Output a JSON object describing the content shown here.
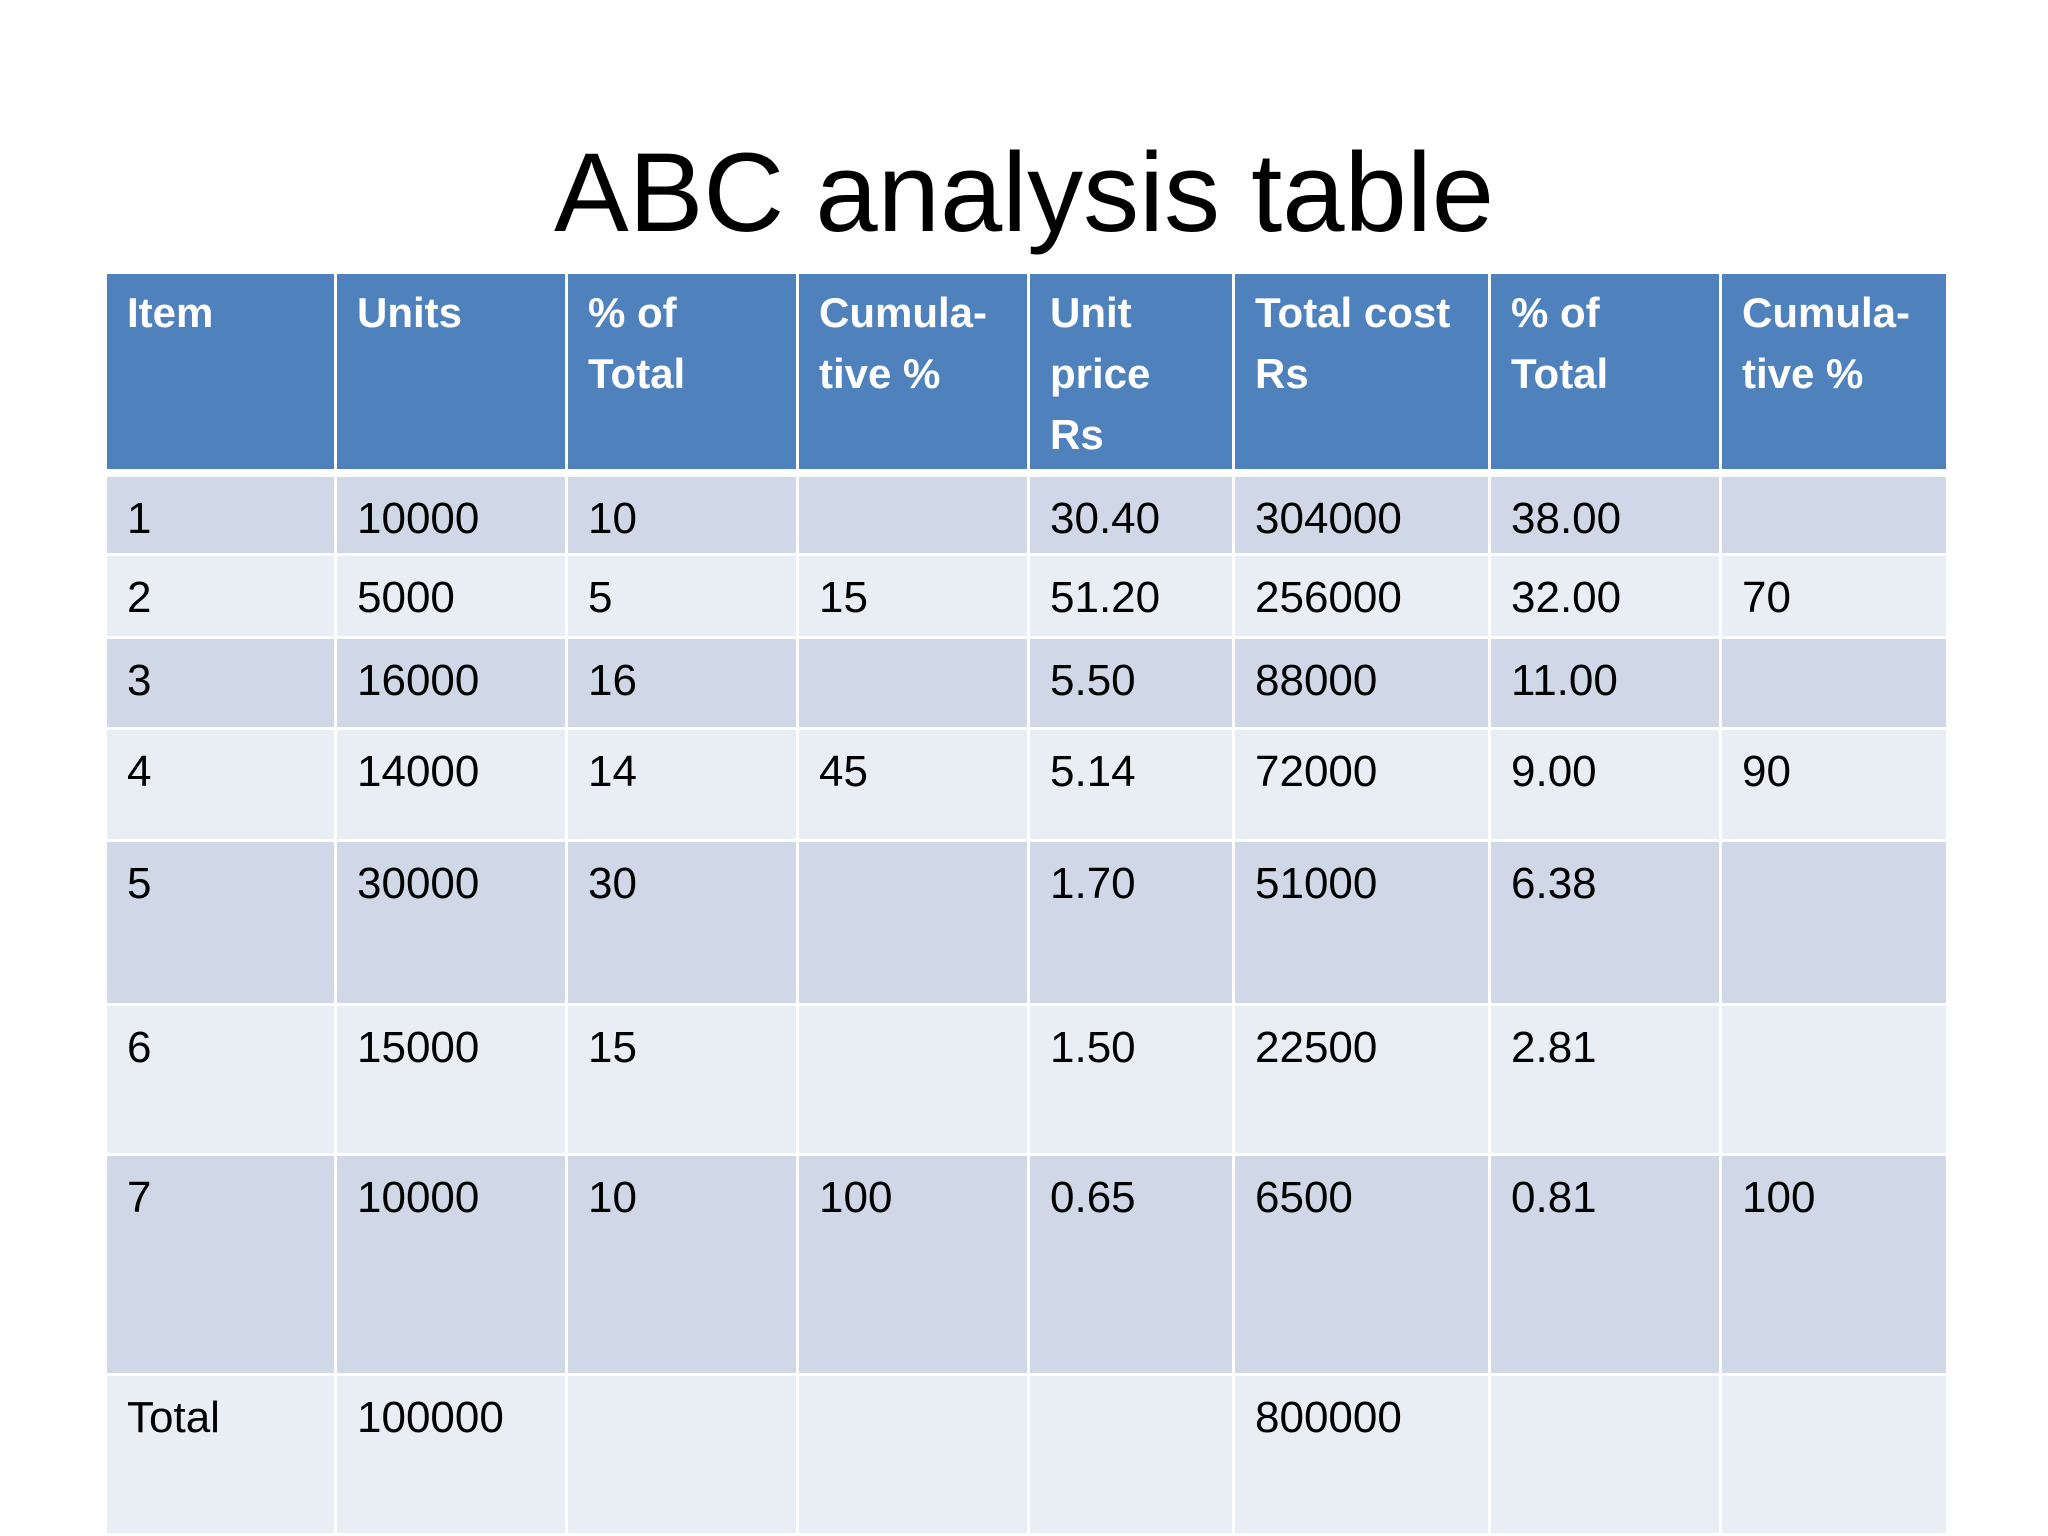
{
  "slide": {
    "title": "ABC analysis table"
  },
  "table": {
    "headers": [
      "Item",
      "Units",
      "% of\nTotal",
      "Cumula-\ntive  %",
      "Unit\nprice\nRs",
      "Total cost\nRs",
      "% of\nTotal",
      "Cumula-\ntive %"
    ],
    "rows": [
      [
        "1",
        "10000",
        "10",
        "",
        "30.40",
        "304000",
        "38.00",
        ""
      ],
      [
        "2",
        "5000",
        "5",
        "15",
        "51.20",
        "256000",
        "32.00",
        "70"
      ],
      [
        "3",
        "16000",
        "16",
        "",
        "5.50",
        "88000",
        "11.00",
        ""
      ],
      [
        "4",
        "14000",
        "14",
        "45",
        "5.14",
        "72000",
        "9.00",
        "90"
      ],
      [
        "5",
        "30000",
        "30",
        "",
        "1.70",
        "51000",
        "6.38",
        ""
      ],
      [
        "6",
        "15000",
        "15",
        "",
        "1.50",
        "22500",
        "2.81",
        ""
      ],
      [
        "7",
        "10000",
        "10",
        "100",
        "0.65",
        "6500",
        "0.81",
        "100"
      ],
      [
        "Total",
        "100000",
        "",
        "",
        "",
        "800000",
        "",
        ""
      ]
    ]
  },
  "colors": {
    "header_bg": "#4f81bd",
    "row_odd_bg": "#d0d8e8",
    "row_even_bg": "#e9edf4"
  }
}
